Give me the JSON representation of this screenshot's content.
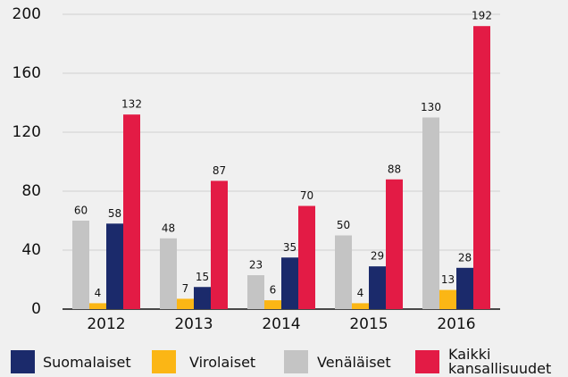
{
  "chart_data": {
    "type": "bar",
    "categories": [
      "2012",
      "2013",
      "2014",
      "2015",
      "2016"
    ],
    "series": [
      {
        "name": "Venäläiset",
        "color": "#c4c4c4",
        "values": [
          60,
          48,
          23,
          50,
          130
        ]
      },
      {
        "name": "Virolaiset",
        "color": "#fbb615",
        "values": [
          4,
          7,
          6,
          4,
          13
        ]
      },
      {
        "name": "Suomalaiset",
        "color": "#1b2a6b",
        "values": [
          58,
          15,
          35,
          29,
          28
        ]
      },
      {
        "name": "Kaikki kansallisuudet",
        "color": "#e31b45",
        "values": [
          132,
          87,
          70,
          88,
          192
        ]
      }
    ],
    "ylim": [
      0,
      200
    ],
    "yticks": [
      0,
      40,
      80,
      120,
      160,
      200
    ],
    "grid": true
  }
}
